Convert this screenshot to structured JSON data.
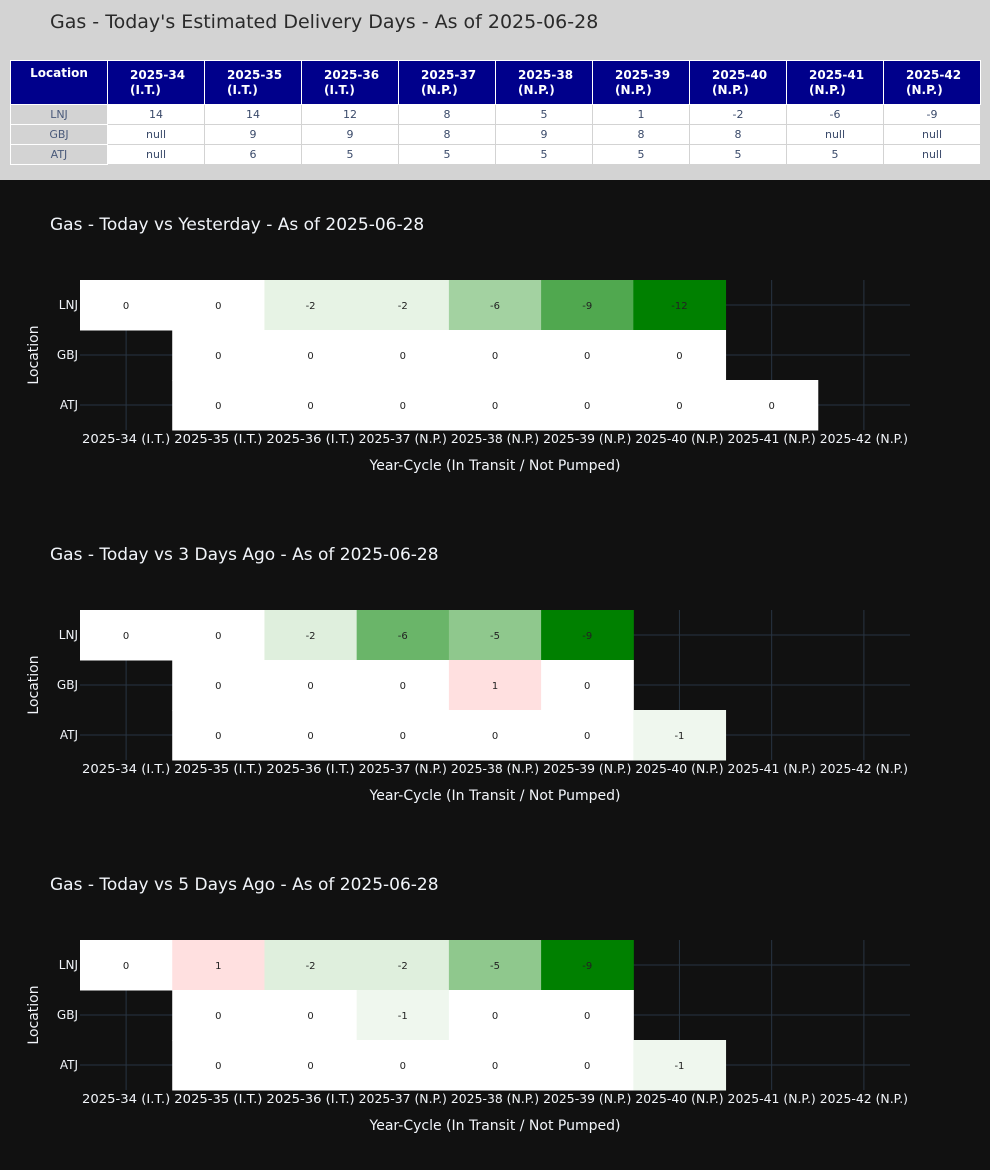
{
  "page": {
    "main_title": "Gas - Today's Estimated Delivery Days - As of 2025-06-28"
  },
  "table": {
    "header_location": "Location",
    "columns": [
      {
        "cycle": "2025-34",
        "status": "(I.T.)"
      },
      {
        "cycle": "2025-35",
        "status": "(I.T.)"
      },
      {
        "cycle": "2025-36",
        "status": "(I.T.)"
      },
      {
        "cycle": "2025-37",
        "status": "(N.P.)"
      },
      {
        "cycle": "2025-38",
        "status": "(N.P.)"
      },
      {
        "cycle": "2025-39",
        "status": "(N.P.)"
      },
      {
        "cycle": "2025-40",
        "status": "(N.P.)"
      },
      {
        "cycle": "2025-41",
        "status": "(N.P.)"
      },
      {
        "cycle": "2025-42",
        "status": "(N.P.)"
      }
    ],
    "rows": [
      {
        "location": "LNJ",
        "values": [
          "14",
          "14",
          "12",
          "8",
          "5",
          "1",
          "-2",
          "-6",
          "-9"
        ]
      },
      {
        "location": "GBJ",
        "values": [
          "null",
          "9",
          "9",
          "8",
          "9",
          "8",
          "8",
          "null",
          "null"
        ]
      },
      {
        "location": "ATJ",
        "values": [
          "null",
          "6",
          "5",
          "5",
          "5",
          "5",
          "5",
          "5",
          "null"
        ]
      }
    ]
  },
  "colors": {
    "header_bg": "#00008b",
    "top_bg": "#d3d3d3",
    "chart_bg": "#111111",
    "grid": "#283442",
    "positive_fill": "#ffe0e0",
    "zero_fill": "#ffffff",
    "negative_scale": [
      "#ffffff",
      "#e2f0e0",
      "#c6e4c5",
      "#7fc07d",
      "#40a040",
      "#008000"
    ]
  },
  "chart_data": [
    {
      "type": "heatmap",
      "title": "Gas - Today vs Yesterday - As of 2025-06-28",
      "xlabel": "Year-Cycle (In Transit / Not Pumped)",
      "ylabel": "Location",
      "x": [
        "2025-34 (I.T.)",
        "2025-35 (I.T.)",
        "2025-36 (I.T.)",
        "2025-37 (N.P.)",
        "2025-38 (N.P.)",
        "2025-39 (N.P.)",
        "2025-40 (N.P.)",
        "2025-41 (N.P.)",
        "2025-42 (N.P.)"
      ],
      "y": [
        "LNJ",
        "GBJ",
        "ATJ"
      ],
      "z": [
        [
          0,
          0,
          -2,
          -2,
          -6,
          -9,
          -12,
          null,
          null
        ],
        [
          null,
          0,
          0,
          0,
          0,
          0,
          0,
          null,
          null
        ],
        [
          null,
          0,
          0,
          0,
          0,
          0,
          0,
          0,
          null
        ]
      ],
      "zmin": -12,
      "grid": true
    },
    {
      "type": "heatmap",
      "title": "Gas - Today vs 3 Days Ago - As of 2025-06-28",
      "xlabel": "Year-Cycle (In Transit / Not Pumped)",
      "ylabel": "Location",
      "x": [
        "2025-34 (I.T.)",
        "2025-35 (I.T.)",
        "2025-36 (I.T.)",
        "2025-37 (N.P.)",
        "2025-38 (N.P.)",
        "2025-39 (N.P.)",
        "2025-40 (N.P.)",
        "2025-41 (N.P.)",
        "2025-42 (N.P.)"
      ],
      "y": [
        "LNJ",
        "GBJ",
        "ATJ"
      ],
      "z": [
        [
          0,
          0,
          -2,
          -6,
          -5,
          -9,
          null,
          null,
          null
        ],
        [
          null,
          0,
          0,
          0,
          1,
          0,
          null,
          null,
          null
        ],
        [
          null,
          0,
          0,
          0,
          0,
          0,
          -1,
          null,
          null
        ]
      ],
      "zmin": -9,
      "grid": true
    },
    {
      "type": "heatmap",
      "title": "Gas - Today vs 5 Days Ago - As of 2025-06-28",
      "xlabel": "Year-Cycle (In Transit / Not Pumped)",
      "ylabel": "Location",
      "x": [
        "2025-34 (I.T.)",
        "2025-35 (I.T.)",
        "2025-36 (I.T.)",
        "2025-37 (N.P.)",
        "2025-38 (N.P.)",
        "2025-39 (N.P.)",
        "2025-40 (N.P.)",
        "2025-41 (N.P.)",
        "2025-42 (N.P.)"
      ],
      "y": [
        "LNJ",
        "GBJ",
        "ATJ"
      ],
      "z": [
        [
          0,
          1,
          -2,
          -2,
          -5,
          -9,
          null,
          null,
          null
        ],
        [
          null,
          0,
          0,
          -1,
          0,
          0,
          null,
          null,
          null
        ],
        [
          null,
          0,
          0,
          0,
          0,
          0,
          -1,
          null,
          null
        ]
      ],
      "zmin": -9,
      "grid": true
    }
  ]
}
